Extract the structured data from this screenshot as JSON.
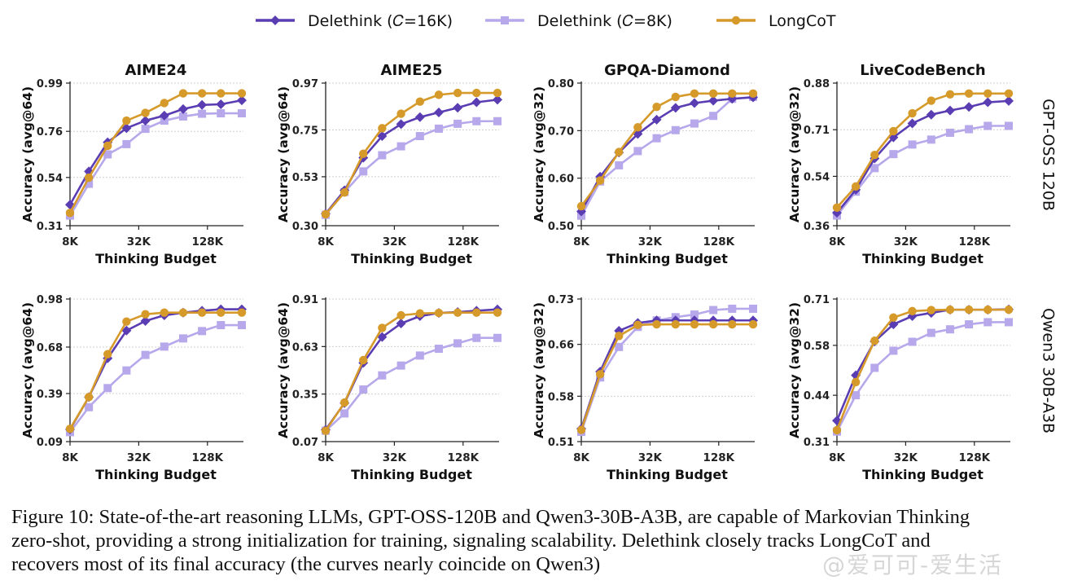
{
  "legend": [
    {
      "label": "Delethink (𝐶=16K)",
      "color": "#5b3db3",
      "marker": "diamond"
    },
    {
      "label": "Delethink (𝐶=8K)",
      "color": "#b6a8ea",
      "marker": "square"
    },
    {
      "label": "LongCoT",
      "color": "#d69a2b",
      "marker": "circle"
    }
  ],
  "row_labels": [
    "GPT-OSS 120B",
    "Qwen3 30B-A3B"
  ],
  "caption": [
    "Figure 10: State-of-the-art reasoning LLMs, GPT-OSS-120B and Qwen3-30B-A3B, are capable of Markovian Thinking",
    "zero-shot, providing a strong initialization for training, signaling scalability. Delethink closely tracks LongCoT and",
    "recovers most of its final accuracy (the curves nearly coincide on Qwen3)"
  ],
  "watermark": "@爱可可-爱生活",
  "chart_data": [
    {
      "type": "line",
      "row": 0,
      "col": 0,
      "title": "AIME24",
      "xlabel": "Thinking Budget",
      "ylabel": "Accuracy (avg@64)",
      "xscale": "log2",
      "xlim": [
        8,
        256
      ],
      "x": [
        8,
        11.7,
        17.1,
        25.0,
        36.6,
        53.6,
        78.4,
        114.7,
        167.8,
        256
      ],
      "xticks": [
        8,
        32,
        128
      ],
      "xtick_labels": [
        "8K",
        "32K",
        "128K"
      ],
      "ylim": [
        0.31,
        0.99
      ],
      "yticks": [
        0.31,
        0.54,
        0.76,
        0.99
      ],
      "ytick_labels": [
        "0.31",
        "0.54",
        "0.76",
        "0.99"
      ],
      "grid": true,
      "series": [
        {
          "name": "Delethink (C=16K)",
          "values": [
            0.41,
            0.569,
            0.708,
            0.775,
            0.811,
            0.835,
            0.866,
            0.886,
            0.889,
            0.908
          ]
        },
        {
          "name": "Delethink (C=8K)",
          "values": [
            0.358,
            0.51,
            0.65,
            0.699,
            0.772,
            0.811,
            0.831,
            0.844,
            0.846,
            0.846
          ]
        },
        {
          "name": "LongCoT",
          "values": [
            0.371,
            0.539,
            0.691,
            0.811,
            0.848,
            0.895,
            0.941,
            0.941,
            0.941,
            0.941
          ]
        }
      ]
    },
    {
      "type": "line",
      "row": 0,
      "col": 1,
      "title": "AIME25",
      "xlabel": "Thinking Budget",
      "ylabel": "Accuracy (avg@64)",
      "xscale": "log2",
      "xlim": [
        8,
        256
      ],
      "x": [
        8,
        11.7,
        17.1,
        25.0,
        36.6,
        53.6,
        78.4,
        114.7,
        167.8,
        256
      ],
      "xticks": [
        8,
        32,
        128
      ],
      "xtick_labels": [
        "8K",
        "32K",
        "128K"
      ],
      "ylim": [
        0.3,
        0.97
      ],
      "yticks": [
        0.3,
        0.53,
        0.75,
        0.97
      ],
      "ytick_labels": [
        "0.30",
        "0.53",
        "0.75",
        "0.97"
      ],
      "grid": true,
      "series": [
        {
          "name": "Delethink (C=16K)",
          "values": [
            0.356,
            0.466,
            0.619,
            0.721,
            0.777,
            0.81,
            0.832,
            0.854,
            0.88,
            0.892
          ]
        },
        {
          "name": "Delethink (C=8K)",
          "values": [
            0.351,
            0.458,
            0.555,
            0.631,
            0.673,
            0.721,
            0.756,
            0.779,
            0.791,
            0.791
          ]
        },
        {
          "name": "LongCoT",
          "values": [
            0.354,
            0.456,
            0.638,
            0.758,
            0.826,
            0.883,
            0.915,
            0.924,
            0.924,
            0.924
          ]
        }
      ]
    },
    {
      "type": "line",
      "row": 0,
      "col": 2,
      "title": "GPQA-Diamond",
      "xlabel": "Thinking Budget",
      "ylabel": "Accuracy (avg@32)",
      "xscale": "log2",
      "xlim": [
        8,
        256
      ],
      "x": [
        8,
        11.7,
        17.1,
        25.0,
        36.6,
        53.6,
        78.4,
        114.7,
        167.8,
        256
      ],
      "xticks": [
        8,
        32,
        128
      ],
      "xtick_labels": [
        "8K",
        "32K",
        "128K"
      ],
      "ylim": [
        0.5,
        0.8
      ],
      "yticks": [
        0.5,
        0.6,
        0.7,
        0.8
      ],
      "ytick_labels": [
        "0.50",
        "0.60",
        "0.70",
        "0.80"
      ],
      "grid": true,
      "series": [
        {
          "name": "Delethink (C=16K)",
          "values": [
            0.53,
            0.603,
            0.654,
            0.693,
            0.723,
            0.748,
            0.758,
            0.763,
            0.767,
            0.77
          ]
        },
        {
          "name": "Delethink (C=8K)",
          "values": [
            0.521,
            0.593,
            0.627,
            0.657,
            0.684,
            0.701,
            0.715,
            0.731,
            0.767,
            0.771
          ]
        },
        {
          "name": "LongCoT",
          "values": [
            0.541,
            0.595,
            0.655,
            0.707,
            0.75,
            0.771,
            0.778,
            0.778,
            0.778,
            0.778
          ]
        }
      ]
    },
    {
      "type": "line",
      "row": 0,
      "col": 3,
      "title": "LiveCodeBench",
      "xlabel": "Thinking Budget",
      "ylabel": "Accuracy (avg@32)",
      "xscale": "log2",
      "xlim": [
        8,
        256
      ],
      "x": [
        8,
        11.7,
        17.1,
        25.0,
        36.6,
        53.6,
        78.4,
        114.7,
        167.8,
        256
      ],
      "xticks": [
        8,
        32,
        128
      ],
      "xtick_labels": [
        "8K",
        "32K",
        "128K"
      ],
      "ylim": [
        0.36,
        0.88
      ],
      "yticks": [
        0.36,
        0.54,
        0.71,
        0.88
      ],
      "ytick_labels": [
        "0.36",
        "0.54",
        "0.71",
        "0.88"
      ],
      "grid": true,
      "series": [
        {
          "name": "Delethink (C=16K)",
          "values": [
            0.407,
            0.491,
            0.605,
            0.682,
            0.733,
            0.765,
            0.78,
            0.793,
            0.81,
            0.815
          ]
        },
        {
          "name": "Delethink (C=8K)",
          "values": [
            0.397,
            0.484,
            0.57,
            0.621,
            0.656,
            0.674,
            0.699,
            0.712,
            0.724,
            0.724
          ]
        },
        {
          "name": "LongCoT",
          "values": [
            0.426,
            0.503,
            0.618,
            0.705,
            0.77,
            0.816,
            0.839,
            0.842,
            0.842,
            0.842
          ]
        }
      ]
    },
    {
      "type": "line",
      "row": 1,
      "col": 0,
      "title": "",
      "xlabel": "Thinking Budget",
      "ylabel": "Accuracy (avg@64)",
      "xscale": "log2",
      "xlim": [
        8,
        256
      ],
      "x": [
        8,
        11.7,
        17.1,
        25.0,
        36.6,
        53.6,
        78.4,
        114.7,
        167.8,
        256
      ],
      "xticks": [
        8,
        32,
        128
      ],
      "xtick_labels": [
        "8K",
        "32K",
        "128K"
      ],
      "ylim": [
        0.09,
        0.98
      ],
      "yticks": [
        0.09,
        0.39,
        0.68,
        0.98
      ],
      "ytick_labels": [
        "0.09",
        "0.39",
        "0.68",
        "0.98"
      ],
      "grid": true,
      "series": [
        {
          "name": "Delethink (C=16K)",
          "values": [
            0.166,
            0.368,
            0.61,
            0.783,
            0.843,
            0.878,
            0.895,
            0.907,
            0.916,
            0.916
          ]
        },
        {
          "name": "Delethink (C=8K)",
          "values": [
            0.149,
            0.305,
            0.424,
            0.534,
            0.631,
            0.683,
            0.734,
            0.78,
            0.817,
            0.817
          ]
        },
        {
          "name": "LongCoT",
          "values": [
            0.17,
            0.368,
            0.636,
            0.839,
            0.885,
            0.895,
            0.895,
            0.895,
            0.895,
            0.895
          ]
        }
      ]
    },
    {
      "type": "line",
      "row": 1,
      "col": 1,
      "title": "",
      "xlabel": "Thinking Budget",
      "ylabel": "Accuracy (avg@64)",
      "xscale": "log2",
      "xlim": [
        8,
        256
      ],
      "x": [
        8,
        11.7,
        17.1,
        25.0,
        36.6,
        53.6,
        78.4,
        114.7,
        167.8,
        256
      ],
      "xticks": [
        8,
        32,
        128
      ],
      "xtick_labels": [
        "8K",
        "32K",
        "128K"
      ],
      "ylim": [
        0.07,
        0.91
      ],
      "yticks": [
        0.07,
        0.35,
        0.63,
        0.91
      ],
      "ytick_labels": [
        "0.07",
        "0.35",
        "0.63",
        "0.91"
      ],
      "grid": true,
      "series": [
        {
          "name": "Delethink (C=16K)",
          "values": [
            0.14,
            0.297,
            0.534,
            0.686,
            0.766,
            0.809,
            0.828,
            0.833,
            0.841,
            0.849
          ]
        },
        {
          "name": "Delethink (C=8K)",
          "values": [
            0.134,
            0.236,
            0.377,
            0.46,
            0.518,
            0.577,
            0.617,
            0.649,
            0.681,
            0.681
          ]
        },
        {
          "name": "LongCoT",
          "values": [
            0.134,
            0.3,
            0.55,
            0.74,
            0.814,
            0.825,
            0.828,
            0.83,
            0.83,
            0.83
          ]
        }
      ]
    },
    {
      "type": "line",
      "row": 1,
      "col": 2,
      "title": "",
      "xlabel": "Thinking Budget",
      "ylabel": "Accuracy (avg@32)",
      "xscale": "log2",
      "xlim": [
        8,
        256
      ],
      "x": [
        8,
        11.7,
        17.1,
        25.0,
        36.6,
        53.6,
        78.4,
        114.7,
        167.8,
        256
      ],
      "xticks": [
        8,
        32,
        128
      ],
      "xtick_labels": [
        "8K",
        "32K",
        "128K"
      ],
      "ylim": [
        0.51,
        0.73
      ],
      "yticks": [
        0.51,
        0.58,
        0.66,
        0.73
      ],
      "ytick_labels": [
        "0.51",
        "0.58",
        "0.66",
        "0.73"
      ],
      "grid": true,
      "series": [
        {
          "name": "Delethink (C=16K)",
          "values": [
            0.53,
            0.618,
            0.681,
            0.693,
            0.697,
            0.697,
            0.697,
            0.697,
            0.697,
            0.697
          ]
        },
        {
          "name": "Delethink (C=8K)",
          "values": [
            0.525,
            0.609,
            0.656,
            0.687,
            0.697,
            0.702,
            0.706,
            0.713,
            0.715,
            0.715
          ]
        },
        {
          "name": "LongCoT",
          "values": [
            0.528,
            0.614,
            0.673,
            0.69,
            0.691,
            0.691,
            0.691,
            0.691,
            0.691,
            0.691
          ]
        }
      ]
    },
    {
      "type": "line",
      "row": 1,
      "col": 3,
      "title": "",
      "xlabel": "Thinking Budget",
      "ylabel": "Accuracy (avg@32)",
      "xscale": "log2",
      "xlim": [
        8,
        256
      ],
      "x": [
        8,
        11.7,
        17.1,
        25.0,
        36.6,
        53.6,
        78.4,
        114.7,
        167.8,
        256
      ],
      "xticks": [
        8,
        32,
        128
      ],
      "xtick_labels": [
        "8K",
        "32K",
        "128K"
      ],
      "ylim": [
        0.31,
        0.71
      ],
      "yticks": [
        0.31,
        0.44,
        0.58,
        0.71
      ],
      "ytick_labels": [
        "0.31",
        "0.44",
        "0.58",
        "0.71"
      ],
      "grid": true,
      "series": [
        {
          "name": "Delethink (C=16K)",
          "values": [
            0.369,
            0.496,
            0.591,
            0.639,
            0.662,
            0.671,
            0.68,
            0.68,
            0.68,
            0.681
          ]
        },
        {
          "name": "Delethink (C=8K)",
          "values": [
            0.338,
            0.44,
            0.517,
            0.565,
            0.59,
            0.615,
            0.625,
            0.639,
            0.645,
            0.645
          ]
        },
        {
          "name": "LongCoT",
          "values": [
            0.342,
            0.477,
            0.593,
            0.658,
            0.676,
            0.679,
            0.68,
            0.68,
            0.68,
            0.68
          ]
        }
      ]
    }
  ]
}
